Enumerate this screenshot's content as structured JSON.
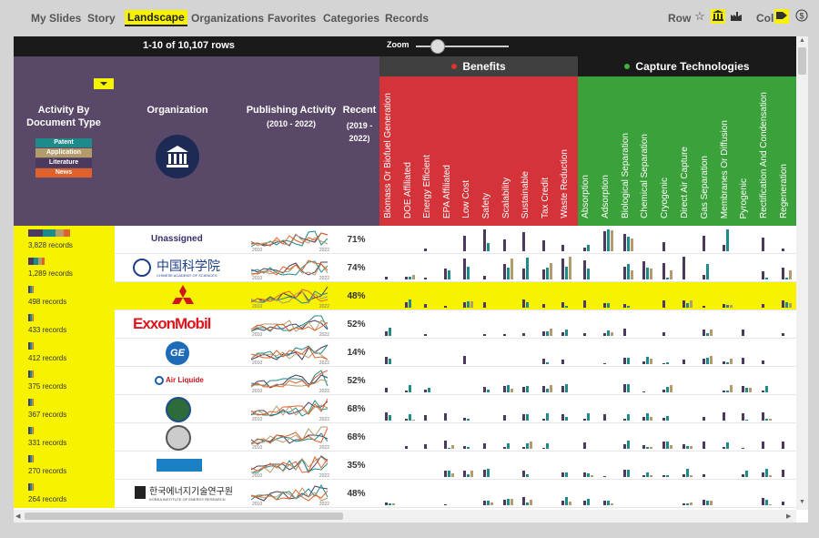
{
  "nav": {
    "tabs": [
      "My Slides",
      "Story",
      "Landscape",
      "Organizations",
      "Favorites",
      "Categories",
      "Records"
    ],
    "active": "Landscape",
    "row_label": "Row",
    "col_label": "Col"
  },
  "toolbar": {
    "row_count": "1-10 of 10,107 rows",
    "zoom_label": "Zoom"
  },
  "header": {
    "activity_title": "Activity By\nDocument Type",
    "org_title": "Organization",
    "pub_title": "Publishing Activity",
    "pub_range": "(2010 - 2022)",
    "recent_title": "Recent",
    "recent_range": "(2019 -\n2022)",
    "legend": [
      {
        "label": "Patent",
        "color": "#1f8a8a"
      },
      {
        "label": "Application",
        "color": "#b39b6b"
      },
      {
        "label": "Literature",
        "color": "#4b3a5e"
      },
      {
        "label": "News",
        "color": "#e0622a"
      }
    ],
    "benefits_title": "Benefits",
    "capture_title": "Capture Technologies",
    "benefits_columns": [
      "Biomass Or Biofuel Generation",
      "DOE Affiliated",
      "Energy Efficient",
      "EPA Affiliated",
      "Low Cost",
      "Safety",
      "Scalability",
      "Sustainable",
      "Tax Credit",
      "Waste Reduction"
    ],
    "capture_columns": [
      "Absorption",
      "Adsorption",
      "Biological Separation",
      "Chemical Separation",
      "Cryogenic",
      "Direct Air Capture",
      "Gas Separation",
      "Membranes Or Diffusion",
      "Pyrogenic",
      "Rectification And Condensation",
      "Regeneration"
    ]
  },
  "spark_axis": {
    "start": "2010",
    "end": "2022"
  },
  "rows": [
    {
      "records": "3,828 records",
      "org": "Unassigned",
      "recent": "71%",
      "highlight": false
    },
    {
      "records": "1,289 records",
      "org": "中国科学院",
      "org_sub": "CHINESE ACADEMY OF SCIENCES",
      "recent": "74%",
      "highlight": false
    },
    {
      "records": "498 records",
      "org": "",
      "recent": "48%",
      "highlight": true
    },
    {
      "records": "433 records",
      "org": "ExxonMobil",
      "recent": "52%",
      "highlight": false
    },
    {
      "records": "412 records",
      "org": "GE",
      "recent": "14%",
      "highlight": false
    },
    {
      "records": "375 records",
      "org": "Air Liquide",
      "recent": "52%",
      "highlight": false
    },
    {
      "records": "367 records",
      "org": "",
      "recent": "68%",
      "highlight": false
    },
    {
      "records": "331 records",
      "org": "",
      "recent": "68%",
      "highlight": false
    },
    {
      "records": "270 records",
      "org": "",
      "recent": "35%",
      "highlight": false
    },
    {
      "records": "264 records",
      "org": "한국에너지기술연구원",
      "org_sub": "KOREA INSTITUTE OF ENERGY RESEARCH",
      "recent": "48%",
      "highlight": false
    }
  ]
}
